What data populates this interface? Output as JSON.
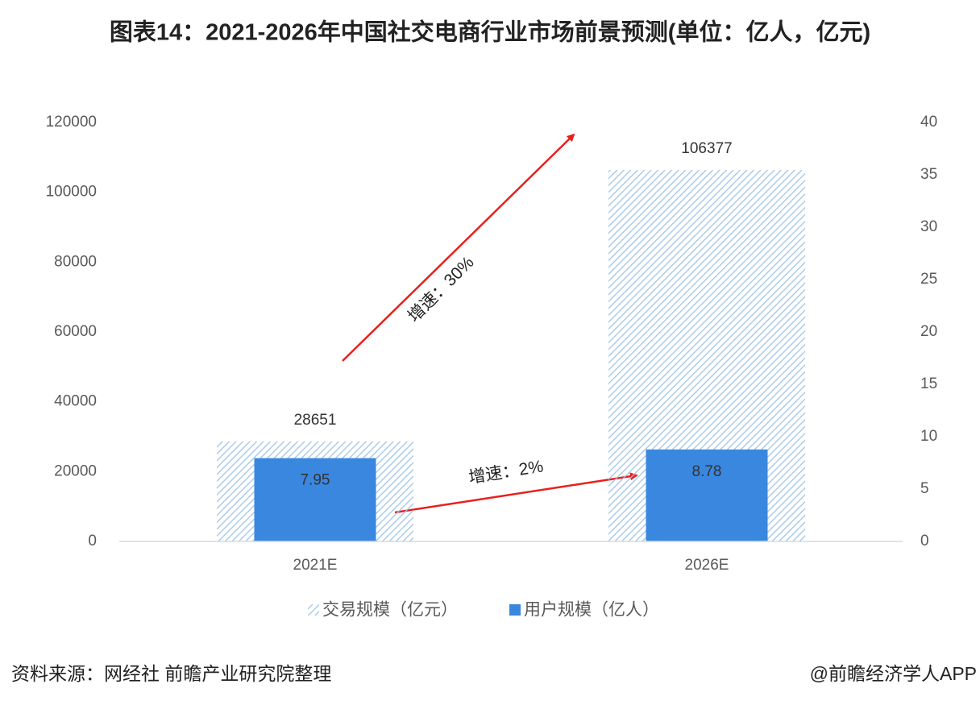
{
  "chart_data": {
    "type": "bar",
    "title": "图表14：2021-2026年中国社交电商行业市场前景预测(单位：亿人，亿元)",
    "categories": [
      "2021E",
      "2026E"
    ],
    "series": [
      {
        "name": "交易规模（亿元）",
        "color": "#9dc3e6",
        "values": [
          28651,
          106377
        ]
      },
      {
        "name": "用户规模（亿人）",
        "color": "#3a87e0",
        "values": [
          7.95,
          8.78
        ],
        "axis": "y2"
      }
    ],
    "ylim": [
      0,
      120000
    ],
    "yticks": [
      0,
      20000,
      40000,
      60000,
      80000,
      100000,
      120000
    ],
    "y2lim": [
      0,
      40
    ],
    "y2ticks": [
      0,
      5,
      10,
      15,
      20,
      25,
      30,
      35,
      40
    ],
    "grid": false,
    "annotations": [
      "增速：30%",
      "增速：2%"
    ],
    "source": "资料来源：网经社 前瞻产业研究院整理",
    "credit": "@前瞻经济学人APP"
  }
}
